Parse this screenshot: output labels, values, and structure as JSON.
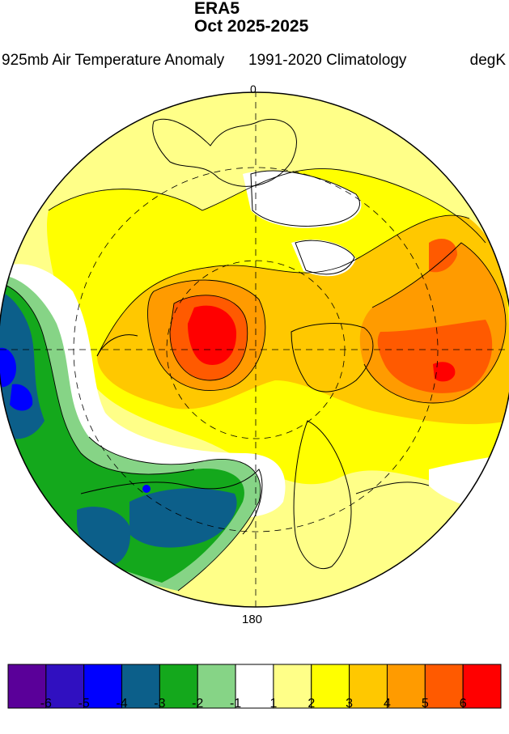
{
  "header": {
    "dataset": "ERA5",
    "period": "Oct 2025-2025",
    "variable": "925mb Air Temperature Anomaly",
    "climatology": "1991-2020 Climatology",
    "units": "degK"
  },
  "map": {
    "projection": "north polar stereographic",
    "longitude_labels": {
      "top": "0",
      "bottom": "180"
    },
    "contour_labels": [
      "1",
      "2",
      "3",
      "4",
      "5",
      "6",
      "-1",
      "-2",
      "-3"
    ],
    "field_regions": [
      {
        "region": "Greenland / Canadian Arctic",
        "anomaly": "-1 to 1"
      },
      {
        "region": "Arctic Ocean core",
        "anomaly": "5 to 6"
      },
      {
        "region": "Western Siberia",
        "anomaly": "5 to 6"
      },
      {
        "region": "North Pacific / Alaska",
        "anomaly": "-3 to -2"
      },
      {
        "region": "North Atlantic",
        "anomaly": "-3 to -4"
      }
    ]
  },
  "colorbar": {
    "colors": [
      "#5a0099",
      "#3010c0",
      "#0000ff",
      "#0c5f8a",
      "#14a81c",
      "#86d486",
      "#ffffff",
      "#ffff88",
      "#ffff00",
      "#ffc800",
      "#ff9b00",
      "#ff5a00",
      "#ff0000"
    ],
    "tick_labels": [
      "-6",
      "-5",
      "-4",
      "-3",
      "-2",
      "-1",
      "1",
      "2",
      "3",
      "4",
      "5",
      "6"
    ]
  }
}
